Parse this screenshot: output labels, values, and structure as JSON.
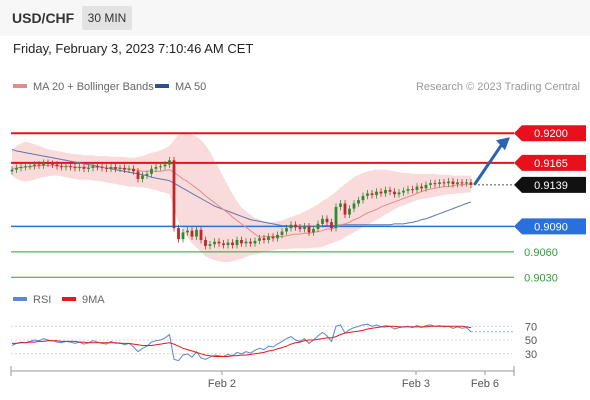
{
  "header": {
    "symbol": "USD/CHF",
    "timeframe": "30 MIN"
  },
  "datetime": "Friday, February 3, 2023 7:10:46 AM CET",
  "legend": {
    "ma20": "MA 20 + Bollinger Bands",
    "ma50": "MA 50",
    "copyright": "Research © 2023 Trading Central",
    "rsi": "RSI",
    "rsi_ma": "9MA"
  },
  "colors": {
    "resistance": "#e8101c",
    "support": "#2a6fdb",
    "support_light": "#2e9e3a",
    "bollinger_fill": "#f9d5d5",
    "ma20": "#e98a8a",
    "ma50": "#5a78b0",
    "candle_up": "#2f8a2f",
    "candle_down": "#c0262a",
    "arrow": "#2a63b0",
    "rsi": "#5c86d8",
    "rsi_ma": "#e01b1b"
  },
  "chart_data": [
    {
      "type": "candlestick",
      "name": "price",
      "x_labels": [
        "Feb 2",
        "Feb 3",
        "Feb 6"
      ],
      "ylim": [
        0.9015,
        0.9225
      ],
      "levels": [
        {
          "value": 0.92,
          "label": "0.9200",
          "kind": "resistance",
          "style": "boxed"
        },
        {
          "value": 0.9165,
          "label": "0.9165",
          "kind": "resistance",
          "style": "boxed"
        },
        {
          "value": 0.9139,
          "label": "0.9139",
          "kind": "last",
          "style": "boxed"
        },
        {
          "value": 0.909,
          "label": "0.9090",
          "kind": "support",
          "style": "boxed"
        },
        {
          "value": 0.906,
          "label": "0.9060",
          "kind": "support_light",
          "style": "text"
        },
        {
          "value": 0.903,
          "label": "0.9030",
          "kind": "support_light",
          "style": "text"
        }
      ],
      "close": [
        0.9157,
        0.9159,
        0.916,
        0.9161,
        0.9161,
        0.9163,
        0.9162,
        0.9165,
        0.9164,
        0.9163,
        0.9161,
        0.916,
        0.9161,
        0.916,
        0.9159,
        0.916,
        0.9158,
        0.9159,
        0.9161,
        0.916,
        0.9159,
        0.9158,
        0.916,
        0.9158,
        0.9159,
        0.9157,
        0.9158,
        0.9155,
        0.9146,
        0.915,
        0.9152,
        0.9158,
        0.916,
        0.9161,
        0.9163,
        0.9168,
        0.9088,
        0.9075,
        0.9083,
        0.9085,
        0.9078,
        0.9086,
        0.9074,
        0.9067,
        0.9069,
        0.9072,
        0.907,
        0.9068,
        0.9071,
        0.9068,
        0.9074,
        0.907,
        0.9072,
        0.907,
        0.9073,
        0.9076,
        0.9074,
        0.9078,
        0.9076,
        0.908,
        0.9084,
        0.9088,
        0.9092,
        0.9089,
        0.9087,
        0.909,
        0.9083,
        0.9087,
        0.9093,
        0.9099,
        0.9095,
        0.9088,
        0.9113,
        0.9117,
        0.9104,
        0.9111,
        0.9117,
        0.9121,
        0.9126,
        0.9129,
        0.9127,
        0.9131,
        0.9129,
        0.9133,
        0.9131,
        0.9128,
        0.913,
        0.9132,
        0.9134,
        0.9133,
        0.9137,
        0.9135,
        0.9139,
        0.9141,
        0.914,
        0.9142,
        0.9141,
        0.9143,
        0.914,
        0.9142,
        0.9141,
        0.9142,
        0.9139
      ],
      "ma20": [
        0.9158,
        0.9159,
        0.916,
        0.916,
        0.9161,
        0.9161,
        0.9162,
        0.9162,
        0.9162,
        0.9162,
        0.9162,
        0.9161,
        0.9161,
        0.9161,
        0.916,
        0.916,
        0.916,
        0.916,
        0.916,
        0.916,
        0.916,
        0.9159,
        0.9159,
        0.9159,
        0.9159,
        0.9158,
        0.9158,
        0.9157,
        0.9156,
        0.9155,
        0.9155,
        0.9155,
        0.9155,
        0.9155,
        0.9156,
        0.9157,
        0.9154,
        0.915,
        0.9146,
        0.9143,
        0.9139,
        0.9135,
        0.9131,
        0.9126,
        0.9122,
        0.9118,
        0.9114,
        0.911,
        0.9106,
        0.9101,
        0.9097,
        0.9093,
        0.9089,
        0.9085,
        0.9081,
        0.9077,
        0.9078,
        0.9078,
        0.9078,
        0.9078,
        0.9078,
        0.9079,
        0.908,
        0.9081,
        0.9081,
        0.9082,
        0.9082,
        0.9083,
        0.9084,
        0.9085,
        0.9087,
        0.9087,
        0.9089,
        0.9092,
        0.9093,
        0.9095,
        0.9098,
        0.91,
        0.9103,
        0.9106,
        0.9108,
        0.911,
        0.9113,
        0.9115,
        0.9117,
        0.9119,
        0.9121,
        0.9123,
        0.9125,
        0.9127,
        0.9129,
        0.9131,
        0.9133,
        0.9134,
        0.9135,
        0.9136,
        0.9137,
        0.9137,
        0.9138,
        0.9139,
        0.9139,
        0.914,
        0.914
      ],
      "ma50": [
        0.9181,
        0.9179,
        0.9178,
        0.9177,
        0.9176,
        0.9175,
        0.9174,
        0.9173,
        0.9172,
        0.9171,
        0.917,
        0.9169,
        0.9168,
        0.9167,
        0.9166,
        0.9165,
        0.9164,
        0.9163,
        0.9162,
        0.9161,
        0.916,
        0.9159,
        0.9158,
        0.9157,
        0.9156,
        0.9155,
        0.9154,
        0.9153,
        0.9152,
        0.9151,
        0.915,
        0.9148,
        0.9147,
        0.9146,
        0.9145,
        0.9144,
        0.9141,
        0.9138,
        0.9135,
        0.9132,
        0.9129,
        0.9126,
        0.9123,
        0.912,
        0.9117,
        0.9114,
        0.9112,
        0.911,
        0.9108,
        0.9106,
        0.9104,
        0.9102,
        0.91,
        0.9098,
        0.9097,
        0.9096,
        0.9095,
        0.9094,
        0.9093,
        0.9092,
        0.9091,
        0.9091,
        0.909,
        0.909,
        0.909,
        0.909,
        0.909,
        0.909,
        0.909,
        0.9091,
        0.9091,
        0.9091,
        0.9091,
        0.9092,
        0.9092,
        0.9092,
        0.9092,
        0.9092,
        0.9092,
        0.9092,
        0.9092,
        0.9092,
        0.9092,
        0.9092,
        0.9092,
        0.9093,
        0.9093,
        0.9093,
        0.9094,
        0.9095,
        0.9096,
        0.9098,
        0.9099,
        0.9101,
        0.9103,
        0.9105,
        0.9107,
        0.9109,
        0.9111,
        0.9113,
        0.9115,
        0.9117,
        0.9119
      ],
      "bb_upper": [
        0.918,
        0.9185,
        0.9188,
        0.919,
        0.9189,
        0.9187,
        0.9185,
        0.9183,
        0.9181,
        0.918,
        0.9179,
        0.9178,
        0.9177,
        0.9176,
        0.9175,
        0.9175,
        0.9174,
        0.9174,
        0.9174,
        0.9173,
        0.9173,
        0.9173,
        0.9172,
        0.9172,
        0.9172,
        0.9172,
        0.9171,
        0.9171,
        0.9172,
        0.9173,
        0.9175,
        0.9177,
        0.9178,
        0.918,
        0.9182,
        0.9185,
        0.9192,
        0.9198,
        0.92,
        0.92,
        0.9198,
        0.9196,
        0.9192,
        0.9186,
        0.9178,
        0.9168,
        0.9158,
        0.9148,
        0.9138,
        0.9128,
        0.912,
        0.9112,
        0.9108,
        0.9104,
        0.91,
        0.9098,
        0.9096,
        0.9095,
        0.9095,
        0.9096,
        0.9097,
        0.9099,
        0.9101,
        0.9103,
        0.9105,
        0.9108,
        0.911,
        0.9113,
        0.9116,
        0.912,
        0.9123,
        0.9127,
        0.9131,
        0.9136,
        0.914,
        0.9144,
        0.9148,
        0.9151,
        0.9153,
        0.9155,
        0.9156,
        0.9157,
        0.9157,
        0.9157,
        0.9156,
        0.9155,
        0.9154,
        0.9153,
        0.9153,
        0.9152,
        0.9152,
        0.9152,
        0.9152,
        0.9152,
        0.9152,
        0.9151,
        0.9151,
        0.9151,
        0.915,
        0.915,
        0.915,
        0.915,
        0.915
      ],
      "bb_lower": [
        0.915,
        0.9146,
        0.9144,
        0.9143,
        0.9144,
        0.9145,
        0.9147,
        0.9148,
        0.9149,
        0.915,
        0.915,
        0.9149,
        0.9148,
        0.9147,
        0.9146,
        0.9145,
        0.9145,
        0.9145,
        0.9144,
        0.9144,
        0.9143,
        0.9142,
        0.9141,
        0.914,
        0.9139,
        0.9138,
        0.9137,
        0.9137,
        0.9136,
        0.9136,
        0.9135,
        0.9134,
        0.9133,
        0.9131,
        0.913,
        0.9128,
        0.911,
        0.9095,
        0.9085,
        0.9077,
        0.907,
        0.9065,
        0.906,
        0.9055,
        0.9052,
        0.905,
        0.9049,
        0.9048,
        0.9048,
        0.9049,
        0.905,
        0.9052,
        0.9054,
        0.9056,
        0.9057,
        0.9058,
        0.906,
        0.9061,
        0.9062,
        0.9063,
        0.9063,
        0.9063,
        0.9064,
        0.9064,
        0.9064,
        0.9064,
        0.9064,
        0.9065,
        0.9065,
        0.9066,
        0.9068,
        0.907,
        0.9072,
        0.9074,
        0.9077,
        0.908,
        0.9083,
        0.9086,
        0.9089,
        0.9092,
        0.9095,
        0.9098,
        0.9101,
        0.9104,
        0.9107,
        0.911,
        0.9113,
        0.9115,
        0.9117,
        0.9119,
        0.9121,
        0.9122,
        0.9123,
        0.9124,
        0.9125,
        0.9126,
        0.9127,
        0.9128,
        0.9128,
        0.9129,
        0.9129,
        0.913,
        0.913
      ],
      "forecast": {
        "from": 0.9139,
        "to": 0.92
      }
    },
    {
      "type": "line",
      "name": "rsi_panel",
      "ylim": [
        18,
        82
      ],
      "ticks": [
        70,
        50,
        30
      ],
      "rsi": [
        42,
        45,
        47,
        46,
        48,
        50,
        49,
        52,
        50,
        49,
        47,
        46,
        48,
        47,
        45,
        47,
        44,
        46,
        49,
        47,
        45,
        44,
        48,
        45,
        46,
        43,
        45,
        40,
        33,
        38,
        41,
        47,
        49,
        50,
        53,
        58,
        22,
        20,
        28,
        30,
        25,
        33,
        24,
        22,
        25,
        28,
        27,
        26,
        29,
        27,
        32,
        30,
        33,
        31,
        35,
        38,
        36,
        41,
        40,
        44,
        48,
        52,
        55,
        50,
        48,
        52,
        45,
        50,
        56,
        61,
        56,
        48,
        70,
        72,
        60,
        65,
        68,
        70,
        72,
        73,
        70,
        72,
        69,
        71,
        70,
        66,
        68,
        69,
        70,
        68,
        71,
        68,
        71,
        72,
        70,
        71,
        69,
        70,
        67,
        69,
        67,
        68,
        62
      ],
      "rsi_ma": [
        45,
        45,
        46,
        46,
        47,
        47,
        48,
        48,
        49,
        49,
        49,
        48,
        48,
        48,
        48,
        47,
        47,
        46,
        46,
        46,
        46,
        46,
        46,
        46,
        45,
        45,
        45,
        44,
        43,
        42,
        42,
        42,
        43,
        44,
        45,
        46,
        44,
        41,
        38,
        36,
        34,
        32,
        30,
        28,
        27,
        26,
        26,
        26,
        26,
        27,
        27,
        28,
        28,
        29,
        30,
        31,
        32,
        34,
        35,
        37,
        39,
        41,
        44,
        46,
        47,
        49,
        50,
        50,
        51,
        52,
        53,
        53,
        55,
        58,
        60,
        61,
        62,
        63,
        64,
        66,
        67,
        68,
        69,
        69,
        70,
        70,
        69,
        69,
        69,
        69,
        69,
        69,
        69,
        70,
        70,
        70,
        70,
        70,
        70,
        70,
        70,
        69,
        68
      ]
    }
  ]
}
